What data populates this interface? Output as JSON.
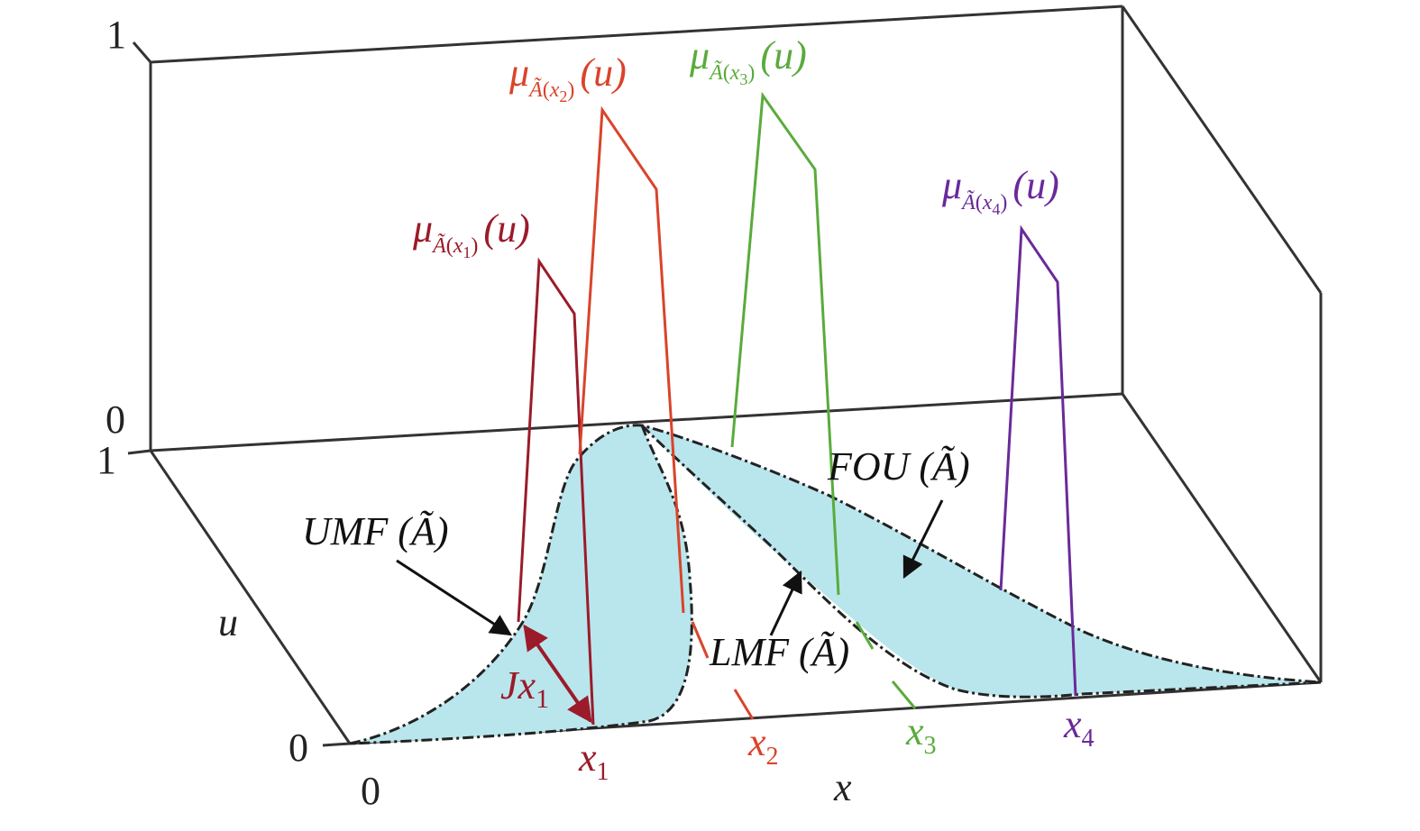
{
  "axis_labels": {
    "u_top_1": "1",
    "u_top_0": "0",
    "u_axis_1": "1",
    "u_axis_0": "0",
    "x_origin": "0",
    "u": "u",
    "x": "x"
  },
  "x_ticks": [
    {
      "base": "x",
      "sub": "1",
      "color": "#9b1b2a"
    },
    {
      "base": "x",
      "sub": "2",
      "color": "#d9442a"
    },
    {
      "base": "x",
      "sub": "3",
      "color": "#5aab3c"
    },
    {
      "base": "x",
      "sub": "4",
      "color": "#6a2a9a"
    }
  ],
  "secondary_mfs": [
    {
      "mu": "μ",
      "sub_A": "Ã",
      "sub_paren_open": "(",
      "sub_x": "x",
      "sub_i": "1",
      "sub_paren_close": ")",
      "arg": "(u)",
      "color": "#9b1b2a"
    },
    {
      "mu": "μ",
      "sub_A": "Ã",
      "sub_paren_open": "(",
      "sub_x": "x",
      "sub_i": "2",
      "sub_paren_close": ")",
      "arg": "(u)",
      "color": "#d9442a"
    },
    {
      "mu": "μ",
      "sub_A": "Ã",
      "sub_paren_open": "(",
      "sub_x": "x",
      "sub_i": "3",
      "sub_paren_close": ")",
      "arg": "(u)",
      "color": "#5aab3c"
    },
    {
      "mu": "μ",
      "sub_A": "Ã",
      "sub_paren_open": "(",
      "sub_x": "x",
      "sub_i": "4",
      "sub_paren_close": ")",
      "arg": "(u)",
      "color": "#6a2a9a"
    }
  ],
  "annotations": {
    "umf": "UMF (Ã)",
    "lmf": "LMF (Ã)",
    "fou": "FOU (Ã)",
    "jx_base": "Jx",
    "jx_sub": "1"
  },
  "colors": {
    "fou_fill": "#b9e6ec",
    "frame": "#333333",
    "arrow": "#111111",
    "jx_arrow": "#9b1b2a"
  }
}
